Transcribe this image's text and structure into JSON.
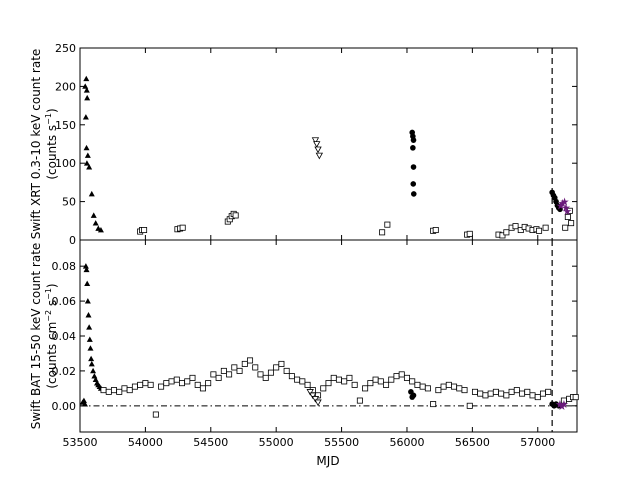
{
  "chart_data": [
    {
      "type": "scatter",
      "panel": "top",
      "ylabel_line1": "Swift XRT 0.3-10 keV count rate",
      "ylabel_line2": "(counts s",
      "ylabel_sup": "−1",
      "ylabel_close": ")",
      "xlim": [
        53500,
        57300
      ],
      "ylim": [
        0,
        250
      ],
      "yticks": [
        0,
        50,
        100,
        150,
        200,
        250
      ],
      "ytick_labels": [
        "0",
        "50",
        "100",
        "150",
        "200",
        "250"
      ],
      "vline_x": 57110,
      "series": [
        {
          "marker": "triangle-filled",
          "points": [
            [
              53540,
              200
            ],
            [
              53548,
              210
            ],
            [
              53552,
              195
            ],
            [
              53555,
              185
            ],
            [
              53545,
              160
            ],
            [
              53550,
              120
            ],
            [
              53553,
              100
            ],
            [
              53560,
              110
            ],
            [
              53570,
              95
            ],
            [
              53590,
              60
            ],
            [
              53605,
              32
            ],
            [
              53620,
              22
            ],
            [
              53640,
              15
            ],
            [
              53660,
              13
            ]
          ]
        },
        {
          "marker": "square-open",
          "points": [
            [
              53960,
              11
            ],
            [
              53975,
              13
            ],
            [
              53990,
              13
            ],
            [
              54245,
              14
            ],
            [
              54265,
              15
            ],
            [
              54285,
              16
            ],
            [
              54630,
              24
            ],
            [
              54645,
              27
            ],
            [
              54660,
              31
            ],
            [
              54675,
              34
            ],
            [
              54690,
              32
            ],
            [
              55810,
              10
            ],
            [
              55850,
              20
            ],
            [
              56200,
              12
            ],
            [
              56220,
              13
            ],
            [
              56460,
              7
            ],
            [
              56480,
              8
            ],
            [
              56700,
              7
            ],
            [
              56730,
              6
            ],
            [
              56760,
              10
            ],
            [
              56800,
              16
            ],
            [
              56830,
              18
            ],
            [
              56870,
              13
            ],
            [
              56900,
              17
            ],
            [
              56930,
              15
            ],
            [
              56960,
              13
            ],
            [
              56990,
              14
            ],
            [
              57010,
              12
            ],
            [
              57060,
              16
            ],
            [
              57210,
              16
            ],
            [
              57230,
              30
            ],
            [
              57245,
              38
            ],
            [
              57255,
              22
            ]
          ]
        },
        {
          "marker": "triangle-down-open",
          "points": [
            [
              55300,
              130
            ],
            [
              55310,
              125
            ],
            [
              55320,
              118
            ],
            [
              55330,
              110
            ]
          ]
        },
        {
          "marker": "circle-filled",
          "points": [
            [
              56040,
              140
            ],
            [
              56045,
              135
            ],
            [
              56050,
              130
            ],
            [
              56045,
              120
            ],
            [
              56050,
              95
            ],
            [
              56048,
              73
            ],
            [
              56052,
              60
            ],
            [
              57110,
              62
            ],
            [
              57120,
              58
            ],
            [
              57130,
              55
            ],
            [
              57140,
              50
            ],
            [
              57150,
              45
            ],
            [
              57160,
              42
            ],
            [
              57170,
              40
            ]
          ]
        },
        {
          "marker": "star-purple",
          "points": [
            [
              57175,
              45
            ],
            [
              57190,
              48
            ],
            [
              57205,
              50
            ],
            [
              57215,
              42
            ],
            [
              57225,
              38
            ]
          ]
        }
      ]
    },
    {
      "type": "scatter",
      "panel": "bottom",
      "ylabel_line1": "Swift BAT 15-50 keV count rate",
      "ylabel_line2": "(counts cm",
      "ylabel_sup1": "−2",
      "ylabel_mid": " s",
      "ylabel_sup2": "−1",
      "ylabel_close": ")",
      "xlabel": "MJD",
      "xlim": [
        53500,
        57300
      ],
      "ylim": [
        -0.015,
        0.095
      ],
      "yticks": [
        0.0,
        0.02,
        0.04,
        0.06,
        0.08
      ],
      "ytick_labels": [
        "0.00",
        "0.02",
        "0.04",
        "0.06",
        "0.08"
      ],
      "xticks": [
        53500,
        54000,
        54500,
        55000,
        55500,
        56000,
        56500,
        57000
      ],
      "xtick_labels": [
        "53500",
        "54000",
        "54500",
        "55000",
        "55500",
        "56000",
        "56500",
        "57000"
      ],
      "hline_y": 0.0,
      "vline_x": 57110,
      "series": [
        {
          "marker": "triangle-filled",
          "points": [
            [
              53520,
              0.002
            ],
            [
              53530,
              0.003
            ],
            [
              53538,
              0.001
            ],
            [
              53545,
              0.08
            ],
            [
              53550,
              0.078
            ],
            [
              53555,
              0.07
            ],
            [
              53560,
              0.06
            ],
            [
              53565,
              0.052
            ],
            [
              53570,
              0.045
            ],
            [
              53575,
              0.038
            ],
            [
              53580,
              0.033
            ],
            [
              53585,
              0.027
            ],
            [
              53590,
              0.024
            ],
            [
              53600,
              0.02
            ],
            [
              53610,
              0.017
            ],
            [
              53620,
              0.015
            ],
            [
              53630,
              0.013
            ],
            [
              53640,
              0.012
            ],
            [
              53650,
              0.011
            ],
            [
              53660,
              0.01
            ]
          ]
        },
        {
          "marker": "square-open",
          "points": [
            [
              53680,
              0.009
            ],
            [
              53720,
              0.008
            ],
            [
              53760,
              0.009
            ],
            [
              53800,
              0.008
            ],
            [
              53840,
              0.01
            ],
            [
              53880,
              0.009
            ],
            [
              53920,
              0.011
            ],
            [
              53960,
              0.012
            ],
            [
              54000,
              0.013
            ],
            [
              54040,
              0.012
            ],
            [
              54080,
              -0.005
            ],
            [
              54120,
              0.011
            ],
            [
              54160,
              0.013
            ],
            [
              54200,
              0.014
            ],
            [
              54240,
              0.015
            ],
            [
              54280,
              0.013
            ],
            [
              54320,
              0.014
            ],
            [
              54360,
              0.016
            ],
            [
              54400,
              0.012
            ],
            [
              54440,
              0.01
            ],
            [
              54480,
              0.013
            ],
            [
              54520,
              0.018
            ],
            [
              54560,
              0.016
            ],
            [
              54600,
              0.02
            ],
            [
              54640,
              0.018
            ],
            [
              54680,
              0.022
            ],
            [
              54720,
              0.02
            ],
            [
              54760,
              0.024
            ],
            [
              54800,
              0.026
            ],
            [
              54840,
              0.022
            ],
            [
              54880,
              0.018
            ],
            [
              54920,
              0.016
            ],
            [
              54960,
              0.019
            ],
            [
              55000,
              0.022
            ],
            [
              55040,
              0.024
            ],
            [
              55080,
              0.02
            ],
            [
              55120,
              0.017
            ],
            [
              55160,
              0.015
            ],
            [
              55200,
              0.014
            ],
            [
              55240,
              0.012
            ],
            [
              55280,
              0.009
            ],
            [
              55320,
              0.006
            ],
            [
              55360,
              0.01
            ],
            [
              55400,
              0.013
            ],
            [
              55440,
              0.016
            ],
            [
              55480,
              0.015
            ],
            [
              55520,
              0.014
            ],
            [
              55560,
              0.016
            ],
            [
              55600,
              0.012
            ],
            [
              55640,
              0.003
            ],
            [
              55680,
              0.01
            ],
            [
              55720,
              0.013
            ],
            [
              55760,
              0.015
            ],
            [
              55800,
              0.014
            ],
            [
              55840,
              0.012
            ],
            [
              55880,
              0.015
            ],
            [
              55920,
              0.017
            ],
            [
              55960,
              0.018
            ],
            [
              56000,
              0.016
            ],
            [
              56040,
              0.014
            ],
            [
              56080,
              0.012
            ],
            [
              56120,
              0.011
            ],
            [
              56160,
              0.01
            ],
            [
              56200,
              0.001
            ],
            [
              56240,
              0.009
            ],
            [
              56280,
              0.011
            ],
            [
              56320,
              0.012
            ],
            [
              56360,
              0.011
            ],
            [
              56400,
              0.01
            ],
            [
              56440,
              0.009
            ],
            [
              56480,
              0.0
            ],
            [
              56520,
              0.008
            ],
            [
              56560,
              0.007
            ],
            [
              56600,
              0.006
            ],
            [
              56640,
              0.007
            ],
            [
              56680,
              0.008
            ],
            [
              56720,
              0.007
            ],
            [
              56760,
              0.006
            ],
            [
              56800,
              0.008
            ],
            [
              56840,
              0.009
            ],
            [
              56880,
              0.007
            ],
            [
              56920,
              0.008
            ],
            [
              56960,
              0.006
            ],
            [
              57000,
              0.005
            ],
            [
              57040,
              0.007
            ],
            [
              57080,
              0.008
            ],
            [
              57200,
              0.003
            ],
            [
              57240,
              0.004
            ],
            [
              57270,
              0.005
            ],
            [
              57290,
              0.005
            ]
          ]
        },
        {
          "marker": "triangle-down-open",
          "points": [
            [
              55260,
              0.008
            ],
            [
              55280,
              0.006
            ],
            [
              55300,
              0.004
            ],
            [
              55320,
              0.002
            ]
          ]
        },
        {
          "marker": "circle-filled",
          "points": [
            [
              56030,
              0.008
            ],
            [
              56040,
              0.005
            ],
            [
              56050,
              0.006
            ],
            [
              57110,
              0.001
            ],
            [
              57125,
              0.0
            ],
            [
              57140,
              0.001
            ],
            [
              57160,
              0.0
            ]
          ]
        },
        {
          "marker": "star-purple",
          "points": [
            [
              57170,
              0.001
            ],
            [
              57185,
              0.0
            ],
            [
              57200,
              0.001
            ]
          ]
        }
      ]
    }
  ]
}
